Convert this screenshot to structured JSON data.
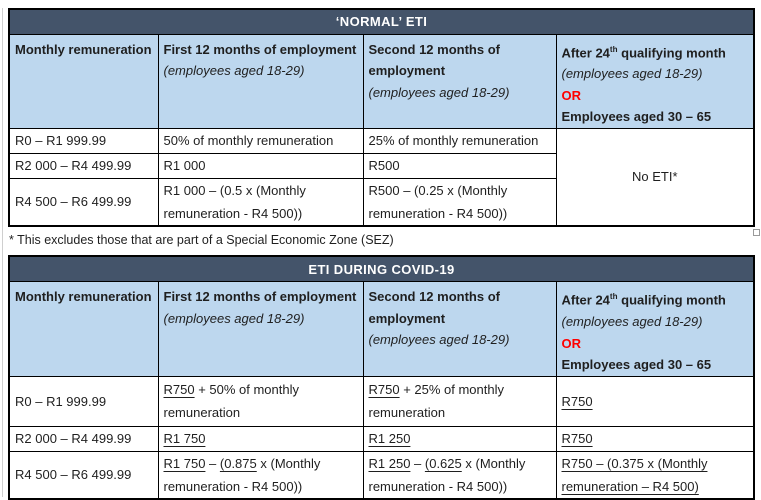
{
  "colors": {
    "title_bar_bg": "#44546A",
    "title_bar_text": "#FFFFFF",
    "header_row_bg": "#BDD7EE",
    "body_bg": "#FFFFFF",
    "border": "#000000",
    "or_red": "#FF0000",
    "text": "#1F1F1F"
  },
  "page": {
    "footnote": "* This excludes those that are part of a Special Economic Zone (SEZ)"
  },
  "normal": {
    "title": "‘NORMAL’ ETI",
    "headers": [
      [
        [
          {
            "t": "Monthly remuneration",
            "b": true
          }
        ]
      ],
      [
        [
          {
            "t": "First 12 months of employment",
            "b": true
          }
        ],
        [
          {
            "t": "(employees aged 18-29)",
            "i": true
          }
        ]
      ],
      [
        [
          {
            "t": "Second 12 months of",
            "b": true
          }
        ],
        [
          {
            "t": "employment",
            "b": true
          }
        ],
        [
          {
            "t": "(employees aged 18-29)",
            "i": true
          }
        ]
      ],
      [
        [
          {
            "t": "After 24",
            "b": true
          },
          {
            "t": "th",
            "b": true,
            "sup": true
          },
          {
            "t": " qualifying month",
            "b": true
          }
        ],
        [
          {
            "t": "(employees aged 18-29)",
            "i": true
          }
        ],
        [
          {
            "t": "OR",
            "b": true,
            "color": "#FF0000"
          }
        ],
        [
          {
            "t": "Employees aged 30 – 65",
            "b": true
          }
        ]
      ]
    ],
    "rows": [
      {
        "cells": [
          [
            [
              {
                "t": "R0 – R1 999.99"
              }
            ]
          ],
          [
            [
              {
                "t": "50% of monthly remuneration"
              }
            ]
          ],
          [
            [
              {
                "t": "25% of monthly remuneration"
              }
            ]
          ]
        ]
      },
      {
        "cells": [
          [
            [
              {
                "t": "R2 000 – R4 499.99"
              }
            ]
          ],
          [
            [
              {
                "t": "R1 000"
              }
            ]
          ],
          [
            [
              {
                "t": "R500"
              }
            ]
          ]
        ]
      },
      {
        "cells": [
          [
            [
              {
                "t": "R4 500 – R6 499.99"
              }
            ]
          ],
          [
            [
              {
                "t": "R1 000 – (0.5 x (Monthly"
              }
            ],
            [
              {
                "t": "remuneration - R4 500))"
              }
            ]
          ],
          [
            [
              {
                "t": "R500 – (0.25 x (Monthly"
              }
            ],
            [
              {
                "t": "remuneration - R4 500))"
              }
            ]
          ]
        ]
      }
    ],
    "no_eti": "No ETI*"
  },
  "covid": {
    "title": "ETI DURING COVID-19",
    "headers": [
      [
        [
          {
            "t": "Monthly remuneration",
            "b": true
          }
        ]
      ],
      [
        [
          {
            "t": "First 12 months of employment",
            "b": true
          }
        ],
        [
          {
            "t": "(employees aged 18-29)",
            "i": true
          }
        ]
      ],
      [
        [
          {
            "t": "Second 12 months of",
            "b": true
          }
        ],
        [
          {
            "t": "employment",
            "b": true
          }
        ],
        [
          {
            "t": "(employees aged 18-29)",
            "i": true
          }
        ]
      ],
      [
        [
          {
            "t": "After 24",
            "b": true
          },
          {
            "t": "th",
            "b": true,
            "sup": true
          },
          {
            "t": " qualifying month",
            "b": true
          }
        ],
        [
          {
            "t": "(employees aged 18-29)",
            "i": true
          }
        ],
        [
          {
            "t": "OR",
            "b": true,
            "color": "#FF0000"
          }
        ],
        [
          {
            "t": "Employees aged 30 – 65",
            "b": true
          }
        ]
      ]
    ],
    "rows": [
      {
        "cells": [
          [
            [
              {
                "t": "R0 – R1 999.99"
              }
            ]
          ],
          [
            [
              {
                "t": "R750",
                "u": true
              },
              {
                "t": " + 50% of monthly"
              }
            ],
            [
              {
                "t": "remuneration"
              }
            ]
          ],
          [
            [
              {
                "t": "R750",
                "u": true
              },
              {
                "t": " + 25% of monthly"
              }
            ],
            [
              {
                "t": "remuneration"
              }
            ]
          ],
          [
            [
              {
                "t": "R750",
                "u": true
              }
            ]
          ]
        ]
      },
      {
        "cells": [
          [
            [
              {
                "t": "R2 000 – R4 499.99"
              }
            ]
          ],
          [
            [
              {
                "t": "R1 750",
                "u": true
              }
            ]
          ],
          [
            [
              {
                "t": "R1 250",
                "u": true
              }
            ]
          ],
          [
            [
              {
                "t": "R750",
                "u": true
              }
            ]
          ]
        ]
      },
      {
        "cells": [
          [
            [
              {
                "t": "R4 500 – R6 499.99"
              }
            ]
          ],
          [
            [
              {
                "t": "R1 750",
                "u": true
              },
              {
                "t": " – "
              },
              {
                "t": "(0.875",
                "u": true
              },
              {
                "t": " x (Monthly"
              }
            ],
            [
              {
                "t": "remuneration - R4 500))"
              }
            ]
          ],
          [
            [
              {
                "t": "R1 250",
                "u": true
              },
              {
                "t": " – "
              },
              {
                "t": "(0.625",
                "u": true
              },
              {
                "t": " x (Monthly"
              }
            ],
            [
              {
                "t": "remuneration - R4 500))"
              }
            ]
          ],
          [
            [
              {
                "t": "R750 – (0.375 x (Monthly",
                "u": true
              }
            ],
            [
              {
                "t": "remuneration – R4 500)",
                "u": true
              }
            ]
          ]
        ]
      }
    ]
  }
}
